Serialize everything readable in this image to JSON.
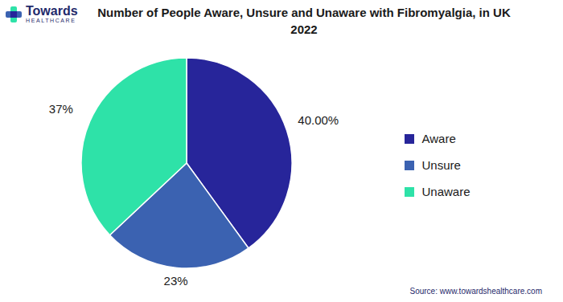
{
  "chart_data": {
    "type": "pie",
    "title": "Number of People Aware, Unsure and Unaware with Fibromyalgia, in UK 2022",
    "categories": [
      "Aware",
      "Unsure",
      "Unaware"
    ],
    "values": [
      40,
      23,
      37
    ],
    "value_labels": [
      "40.00%",
      "23%",
      "37%"
    ],
    "colors": [
      "#27259a",
      "#3b62b1",
      "#2ee2a8"
    ],
    "data_labels": true,
    "legend": "right",
    "source": "Source: www.towardshealthcare.com",
    "logo": {
      "name": "Towards",
      "tagline": "HEALTHCARE"
    }
  }
}
